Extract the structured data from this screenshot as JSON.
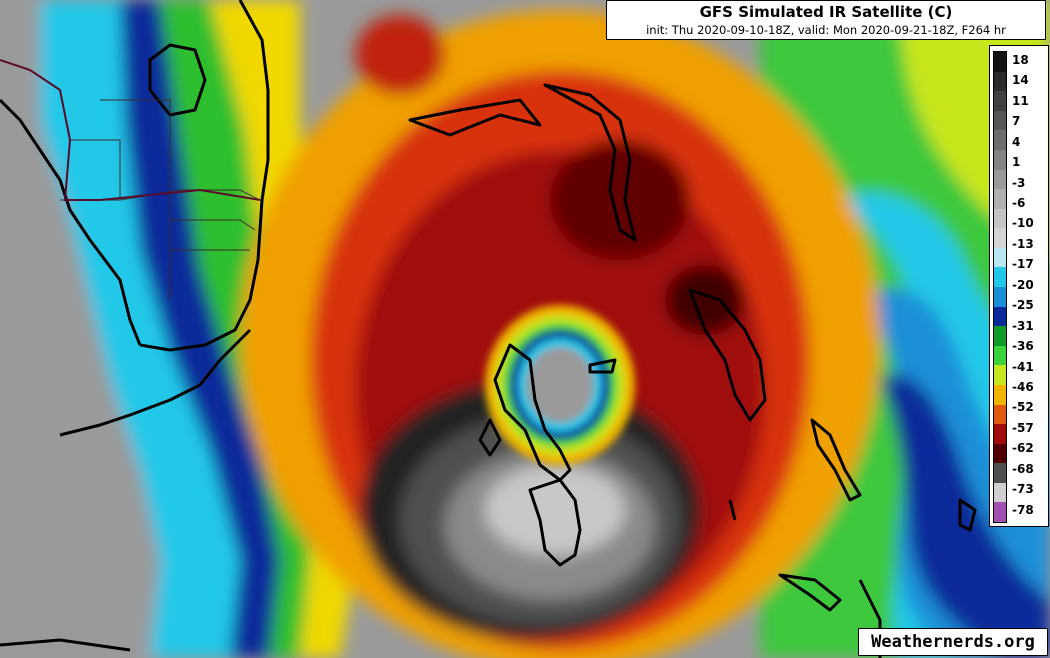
{
  "title": "GFS Simulated IR Satellite (C)",
  "subtitle": "init: Thu 2020-09-10-18Z, valid: Mon 2020-09-21-18Z, F264 hr",
  "watermark": "Weathernerds.org",
  "colorbar": {
    "labels": [
      "18",
      "14",
      "11",
      "7",
      "4",
      "1",
      "-3",
      "-6",
      "-10",
      "-13",
      "-17",
      "-20",
      "-25",
      "-31",
      "-36",
      "-41",
      "-46",
      "-52",
      "-57",
      "-62",
      "-68",
      "-73",
      "-78"
    ],
    "colors": [
      "#121212",
      "#2a2a2a",
      "#404040",
      "#575757",
      "#6d6d6d",
      "#848484",
      "#9a9a9a",
      "#b0b0b0",
      "#c4c4c4",
      "#d4d4d4",
      "#b8e6f0",
      "#22c8e8",
      "#1a8fd8",
      "#0a2a9a",
      "#0f9a2a",
      "#3cd23c",
      "#c8e61e",
      "#f0b400",
      "#e05a10",
      "#a00a0a",
      "#500000",
      "#505050",
      "#d0d0d0",
      "#a050b0"
    ]
  }
}
